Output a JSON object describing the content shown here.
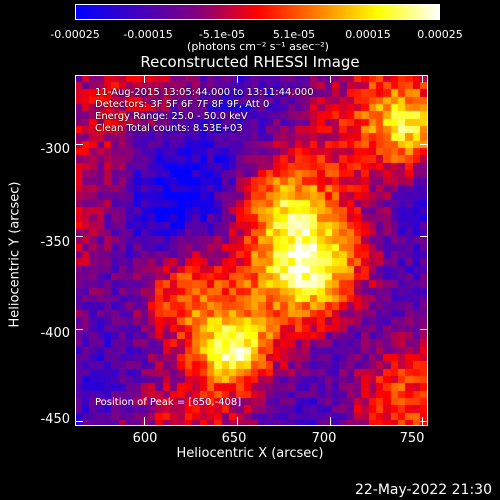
{
  "colorbar": {
    "ticks": [
      "-0.00025",
      "-0.00015",
      "-5.1e-05",
      "5.1e-05",
      "0.00015",
      "0.00025"
    ],
    "unit": "(photons cm⁻² s⁻¹ asec⁻²)",
    "colors": [
      "#0000ff",
      "#4000c0",
      "#800080",
      "#ff0000",
      "#ff8000",
      "#ffff00",
      "#ffffff"
    ]
  },
  "chart_data": {
    "type": "heatmap",
    "title": "Reconstructed RHESSI Image",
    "xlabel": "Heliocentric X (arcsec)",
    "ylabel": "Heliocentric Y (arcsec)",
    "xlim": [
      563,
      753
    ],
    "ylim": [
      -452,
      -263
    ],
    "xticks": [
      600,
      650,
      700,
      750
    ],
    "yticks": [
      -300,
      -350,
      -400,
      -450
    ],
    "colorbar_range": [
      -0.00025,
      0.00025
    ],
    "peak": [
      650,
      -408
    ]
  },
  "info": {
    "line1": "11-Aug-2015 13:05:44.000 to 13:11:44.000",
    "line2": "Detectors: 3F 5F 6F 7F 8F 9F, Att 0",
    "line3": "Energy Range: 25.0 - 50.0 keV",
    "line4": "Clean    Total counts: 8.53E+03"
  },
  "peak_label": "Position of Peak = [650,-408]",
  "date": "22-May-2022 21:30"
}
